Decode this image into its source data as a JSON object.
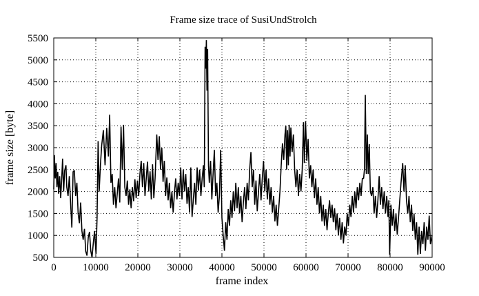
{
  "title": "Frame size trace of SusiUndStrolch",
  "chart_data": {
    "type": "line",
    "title": "Frame size trace of SusiUndStrolch",
    "xlabel": "frame index",
    "ylabel": "frame size [byte]",
    "xlim": [
      0,
      90000
    ],
    "ylim": [
      500,
      5500
    ],
    "xticks": [
      0,
      10000,
      20000,
      30000,
      40000,
      50000,
      60000,
      70000,
      80000,
      90000
    ],
    "yticks": [
      500,
      1000,
      1500,
      2000,
      2500,
      3000,
      3500,
      4000,
      4500,
      5000,
      5500
    ],
    "grid": true,
    "grid_style": "dotted",
    "legend": "none",
    "line_color": "#000000",
    "background_color": "#ffffff",
    "series": [
      {
        "name": "frame size",
        "points": [
          [
            0,
            2050
          ],
          [
            150,
            2830
          ],
          [
            350,
            2300
          ],
          [
            550,
            2650
          ],
          [
            750,
            2100
          ],
          [
            950,
            2450
          ],
          [
            1150,
            1950
          ],
          [
            1400,
            2350
          ],
          [
            1650,
            1850
          ],
          [
            1900,
            2300
          ],
          [
            2100,
            2750
          ],
          [
            2350,
            2000
          ],
          [
            2600,
            2480
          ],
          [
            2900,
            2600
          ],
          [
            3100,
            2100
          ],
          [
            3400,
            1900
          ],
          [
            3700,
            2350
          ],
          [
            4000,
            1750
          ],
          [
            4300,
            1180
          ],
          [
            4600,
            2450
          ],
          [
            4900,
            2480
          ],
          [
            5200,
            1900
          ],
          [
            5500,
            2200
          ],
          [
            5800,
            1500
          ],
          [
            6100,
            1280
          ],
          [
            6400,
            1750
          ],
          [
            6700,
            1100
          ],
          [
            7000,
            900
          ],
          [
            7300,
            1150
          ],
          [
            7600,
            640
          ],
          [
            7900,
            540
          ],
          [
            8200,
            950
          ],
          [
            8500,
            1080
          ],
          [
            8800,
            650
          ],
          [
            9100,
            500
          ],
          [
            9400,
            820
          ],
          [
            9700,
            1100
          ],
          [
            10050,
            580
          ],
          [
            10300,
            1400
          ],
          [
            10550,
            3150
          ],
          [
            10800,
            2000
          ],
          [
            11100,
            2600
          ],
          [
            11400,
            3050
          ],
          [
            11800,
            3400
          ],
          [
            12200,
            2600
          ],
          [
            12600,
            3450
          ],
          [
            13000,
            2800
          ],
          [
            13300,
            3750
          ],
          [
            13600,
            2200
          ],
          [
            13900,
            2400
          ],
          [
            14200,
            1700
          ],
          [
            14500,
            2100
          ],
          [
            14800,
            1620
          ],
          [
            15100,
            1950
          ],
          [
            15400,
            2300
          ],
          [
            15700,
            1750
          ],
          [
            16000,
            3480
          ],
          [
            16300,
            2500
          ],
          [
            16600,
            3520
          ],
          [
            16900,
            2100
          ],
          [
            17200,
            1900
          ],
          [
            17500,
            2250
          ],
          [
            17800,
            1700
          ],
          [
            18100,
            2050
          ],
          [
            18400,
            1620
          ],
          [
            18700,
            2100
          ],
          [
            19000,
            1780
          ],
          [
            19300,
            2280
          ],
          [
            19600,
            1850
          ],
          [
            19900,
            2250
          ],
          [
            20200,
            1900
          ],
          [
            20500,
            2400
          ],
          [
            20800,
            2700
          ],
          [
            21100,
            2100
          ],
          [
            21400,
            2650
          ],
          [
            21700,
            1900
          ],
          [
            22000,
            2300
          ],
          [
            22300,
            2680
          ],
          [
            22600,
            2000
          ],
          [
            22900,
            2460
          ],
          [
            23200,
            1820
          ],
          [
            23500,
            2620
          ],
          [
            23800,
            1850
          ],
          [
            24100,
            2300
          ],
          [
            24500,
            3300
          ],
          [
            24800,
            2720
          ],
          [
            25100,
            3260
          ],
          [
            25400,
            2500
          ],
          [
            25700,
            3000
          ],
          [
            26000,
            2220
          ],
          [
            26300,
            2700
          ],
          [
            26600,
            1900
          ],
          [
            26900,
            2320
          ],
          [
            27200,
            1800
          ],
          [
            27500,
            2200
          ],
          [
            27800,
            1620
          ],
          [
            28100,
            2000
          ],
          [
            28400,
            1520
          ],
          [
            28700,
            1960
          ],
          [
            29000,
            2300
          ],
          [
            29300,
            1820
          ],
          [
            29600,
            2200
          ],
          [
            29900,
            1900
          ],
          [
            30200,
            2550
          ],
          [
            30500,
            1820
          ],
          [
            30800,
            2500
          ],
          [
            31100,
            2000
          ],
          [
            31400,
            2400
          ],
          [
            31700,
            1720
          ],
          [
            32000,
            2100
          ],
          [
            32300,
            1520
          ],
          [
            32600,
            2550
          ],
          [
            32900,
            1420
          ],
          [
            33200,
            1820
          ],
          [
            33500,
            2200
          ],
          [
            33800,
            1700
          ],
          [
            34100,
            2550
          ],
          [
            34400,
            2020
          ],
          [
            34700,
            2500
          ],
          [
            35000,
            1900
          ],
          [
            35300,
            2300
          ],
          [
            35600,
            2600
          ],
          [
            35800,
            2100
          ],
          [
            36000,
            5300
          ],
          [
            36150,
            4800
          ],
          [
            36300,
            5450
          ],
          [
            36450,
            4300
          ],
          [
            36600,
            5250
          ],
          [
            36800,
            2600
          ],
          [
            37000,
            2200
          ],
          [
            37300,
            2700
          ],
          [
            37600,
            1820
          ],
          [
            37900,
            2400
          ],
          [
            38200,
            2950
          ],
          [
            38500,
            1900
          ],
          [
            38800,
            2200
          ],
          [
            39100,
            1520
          ],
          [
            39400,
            1900
          ],
          [
            39700,
            2950
          ],
          [
            40000,
            1400
          ],
          [
            40300,
            1000
          ],
          [
            40600,
            650
          ],
          [
            40900,
            1300
          ],
          [
            41200,
            900
          ],
          [
            41500,
            1600
          ],
          [
            41800,
            1220
          ],
          [
            42100,
            1800
          ],
          [
            42400,
            1400
          ],
          [
            42700,
            2000
          ],
          [
            43000,
            1550
          ],
          [
            43300,
            2200
          ],
          [
            43600,
            1620
          ],
          [
            43900,
            2100
          ],
          [
            44200,
            1500
          ],
          [
            44500,
            1900
          ],
          [
            44800,
            1300
          ],
          [
            45100,
            1750
          ],
          [
            45400,
            2100
          ],
          [
            45700,
            1600
          ],
          [
            46000,
            2200
          ],
          [
            46300,
            1800
          ],
          [
            46600,
            2500
          ],
          [
            46900,
            2900
          ],
          [
            47200,
            2100
          ],
          [
            47500,
            2500
          ],
          [
            47800,
            1700
          ],
          [
            48100,
            2250
          ],
          [
            48400,
            1550
          ],
          [
            48700,
            2000
          ],
          [
            49000,
            2400
          ],
          [
            49300,
            1800
          ],
          [
            49600,
            2300
          ],
          [
            49900,
            2700
          ],
          [
            50200,
            2000
          ],
          [
            50500,
            2500
          ],
          [
            50800,
            1820
          ],
          [
            51100,
            2300
          ],
          [
            51400,
            1700
          ],
          [
            51700,
            2100
          ],
          [
            52000,
            1520
          ],
          [
            52300,
            1900
          ],
          [
            52600,
            1320
          ],
          [
            52900,
            1700
          ],
          [
            53200,
            1220
          ],
          [
            53500,
            1600
          ],
          [
            53800,
            2000
          ],
          [
            54100,
            2600
          ],
          [
            54400,
            3100
          ],
          [
            54700,
            2720
          ],
          [
            55000,
            3300
          ],
          [
            55200,
            3500
          ],
          [
            55400,
            2500
          ],
          [
            55600,
            3400
          ],
          [
            55800,
            2600
          ],
          [
            56000,
            3520
          ],
          [
            56200,
            2800
          ],
          [
            56400,
            3460
          ],
          [
            56700,
            2900
          ],
          [
            57000,
            3300
          ],
          [
            57300,
            2500
          ],
          [
            57600,
            2100
          ],
          [
            57900,
            2500
          ],
          [
            58200,
            1900
          ],
          [
            58500,
            2400
          ],
          [
            58800,
            2000
          ],
          [
            59100,
            2500
          ],
          [
            59400,
            3580
          ],
          [
            59600,
            2650
          ],
          [
            59900,
            3600
          ],
          [
            60200,
            2700
          ],
          [
            60500,
            3200
          ],
          [
            60800,
            2300
          ],
          [
            61100,
            2600
          ],
          [
            61400,
            2100
          ],
          [
            61700,
            2500
          ],
          [
            62000,
            1850
          ],
          [
            62300,
            2300
          ],
          [
            62600,
            1700
          ],
          [
            62900,
            2100
          ],
          [
            63200,
            1500
          ],
          [
            63500,
            1900
          ],
          [
            63800,
            1320
          ],
          [
            64100,
            1700
          ],
          [
            64400,
            1220
          ],
          [
            64700,
            1600
          ],
          [
            65000,
            1120
          ],
          [
            65300,
            1500
          ],
          [
            65600,
            1800
          ],
          [
            65900,
            1400
          ],
          [
            66200,
            1700
          ],
          [
            66500,
            1300
          ],
          [
            66800,
            1620
          ],
          [
            67100,
            1120
          ],
          [
            67400,
            1500
          ],
          [
            67700,
            1000
          ],
          [
            68000,
            1400
          ],
          [
            68300,
            900
          ],
          [
            68600,
            1300
          ],
          [
            68900,
            820
          ],
          [
            69200,
            1200
          ],
          [
            69500,
            1000
          ],
          [
            69800,
            1500
          ],
          [
            70100,
            1220
          ],
          [
            70400,
            1700
          ],
          [
            70700,
            1420
          ],
          [
            71000,
            1900
          ],
          [
            71300,
            1520
          ],
          [
            71600,
            2000
          ],
          [
            71900,
            1620
          ],
          [
            72200,
            2100
          ],
          [
            72500,
            1800
          ],
          [
            72800,
            2200
          ],
          [
            73100,
            1900
          ],
          [
            73400,
            2300
          ],
          [
            73700,
            2300
          ],
          [
            73900,
            2500
          ],
          [
            74100,
            4200
          ],
          [
            74350,
            2400
          ],
          [
            74600,
            3300
          ],
          [
            74800,
            2400
          ],
          [
            75050,
            3080
          ],
          [
            75300,
            2000
          ],
          [
            75600,
            1900
          ],
          [
            75900,
            2100
          ],
          [
            76200,
            1500
          ],
          [
            76500,
            1900
          ],
          [
            76800,
            1400
          ],
          [
            77100,
            1800
          ],
          [
            77400,
            2350
          ],
          [
            77700,
            1700
          ],
          [
            78000,
            2100
          ],
          [
            78300,
            1600
          ],
          [
            78600,
            2000
          ],
          [
            78900,
            1500
          ],
          [
            79200,
            1900
          ],
          [
            79500,
            1420
          ],
          [
            79700,
            1800
          ],
          [
            79900,
            560
          ],
          [
            80200,
            1700
          ],
          [
            80500,
            1220
          ],
          [
            80800,
            1600
          ],
          [
            81100,
            1100
          ],
          [
            81400,
            1500
          ],
          [
            81700,
            1020
          ],
          [
            82000,
            1400
          ],
          [
            82300,
            1800
          ],
          [
            82600,
            2200
          ],
          [
            83000,
            2650
          ],
          [
            83300,
            2000
          ],
          [
            83600,
            2600
          ],
          [
            83900,
            1800
          ],
          [
            84200,
            1500
          ],
          [
            84500,
            1900
          ],
          [
            84800,
            1300
          ],
          [
            85100,
            1700
          ],
          [
            85400,
            1100
          ],
          [
            85700,
            1500
          ],
          [
            86000,
            900
          ],
          [
            86300,
            1300
          ],
          [
            86600,
            560
          ],
          [
            86900,
            1200
          ],
          [
            87200,
            580
          ],
          [
            87500,
            1100
          ],
          [
            87800,
            800
          ],
          [
            88100,
            1300
          ],
          [
            88400,
            650
          ],
          [
            88700,
            1200
          ],
          [
            89000,
            900
          ],
          [
            89300,
            1450
          ],
          [
            89600,
            800
          ],
          [
            90000,
            1000
          ]
        ]
      }
    ]
  }
}
